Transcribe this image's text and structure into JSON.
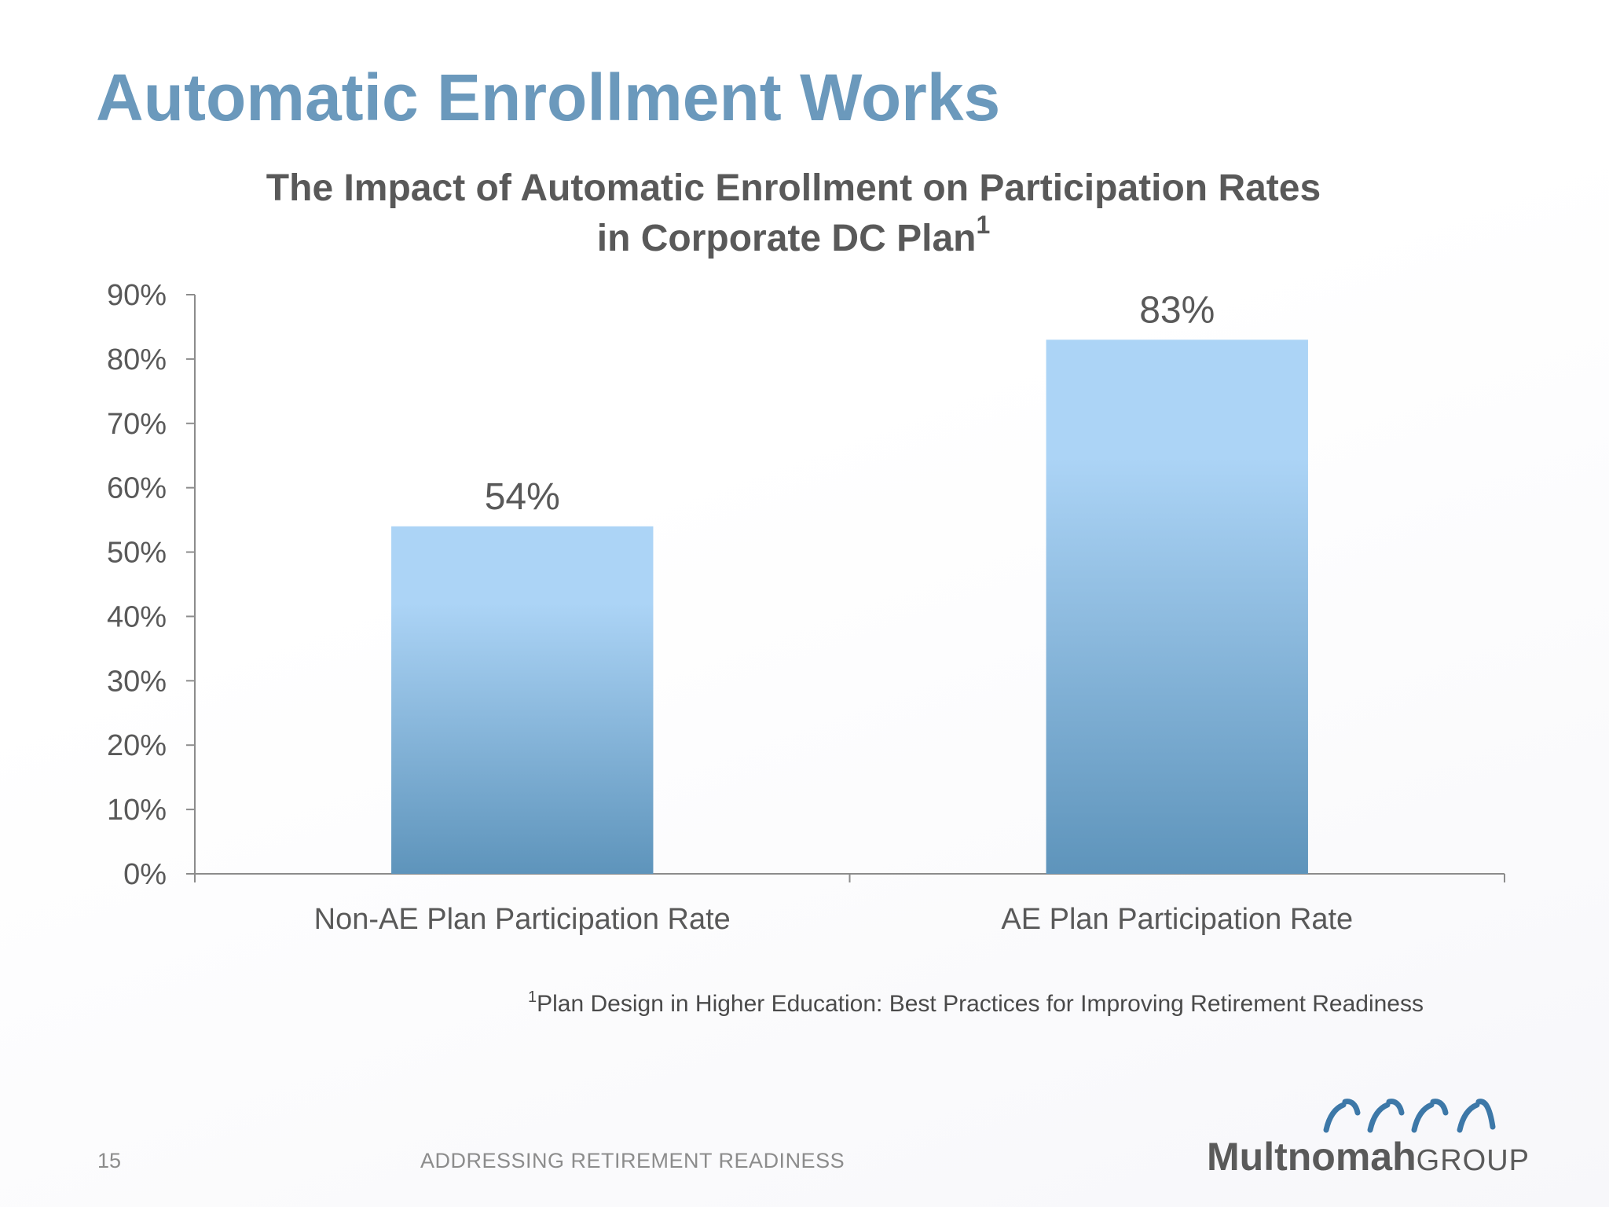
{
  "slide": {
    "title": "Automatic Enrollment Works",
    "title_color": "#6b99bc",
    "page_number": "15",
    "footer_text": "ADDRESSING RETIREMENT READINESS",
    "footnote_marker": "1",
    "footnote_text": "Plan Design in Higher Education:  Best Practices for Improving Retirement Readiness"
  },
  "logo": {
    "name_main": "Multnomah",
    "name_sub": "GROUP",
    "mark_color": "#3d78a8",
    "icon": "wave-arcs-icon"
  },
  "chart_data": {
    "type": "bar",
    "title_line1": "The Impact of Automatic Enrollment on Participation Rates",
    "title_line2": "in Corporate DC Plan",
    "title_superscript": "1",
    "categories": [
      "Non-AE Plan Participation Rate",
      "AE Plan Participation Rate"
    ],
    "values": [
      54,
      83
    ],
    "value_labels": [
      "54%",
      "83%"
    ],
    "y_ticks": [
      0,
      10,
      20,
      30,
      40,
      50,
      60,
      70,
      80,
      90
    ],
    "y_tick_suffix": "%",
    "ylim": [
      0,
      90
    ],
    "xlabel": "",
    "ylabel": "",
    "grid": false,
    "legend": "none",
    "bar_color_top": "#acd4f6",
    "bar_color_bottom": "#5e94bb",
    "axis_color": "#8c8c8c",
    "label_color": "#595959"
  }
}
